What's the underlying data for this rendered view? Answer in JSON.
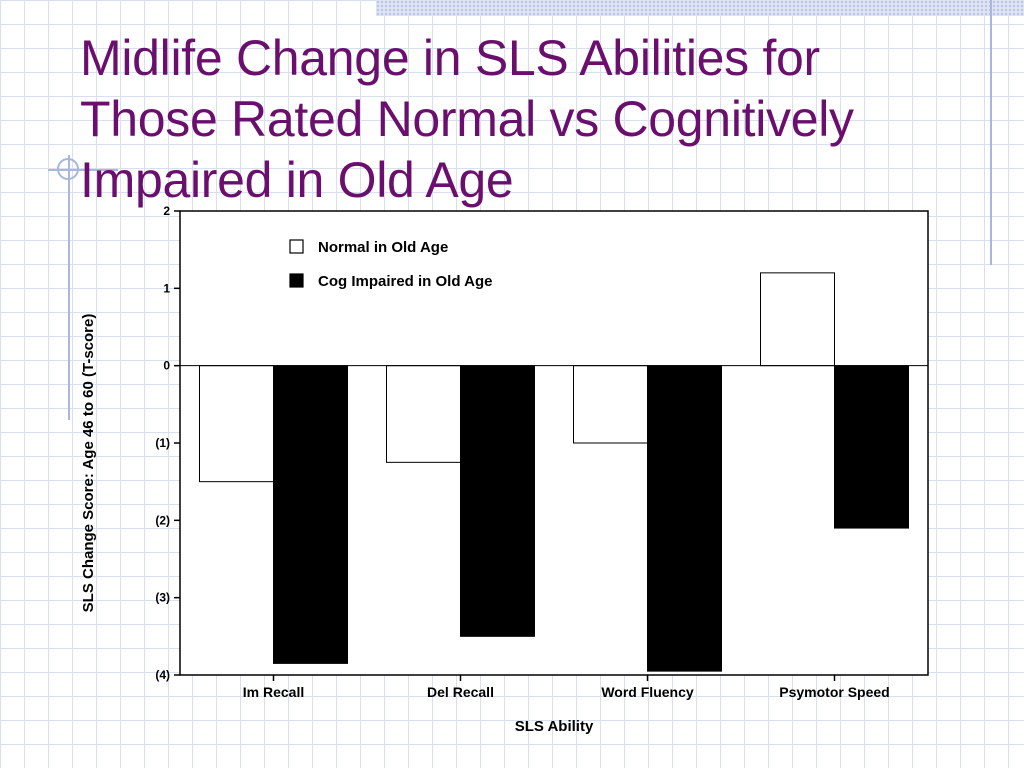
{
  "slide": {
    "title_lines": [
      "Midlife Change in SLS Abilities for",
      "Those Rated Normal vs Cognitively",
      "Impaired in Old Age"
    ],
    "colors": {
      "title": "#6b0f6e",
      "grid": "#d9dfec",
      "accent": "#a9b7dc"
    }
  },
  "chart_data": {
    "type": "bar",
    "xlabel": "SLS Ability",
    "ylabel": "SLS Change Score: Age 46 to 60 (T-score)",
    "categories": [
      "Im Recall",
      "Del Recall",
      "Word Fluency",
      "Psymotor Speed"
    ],
    "series": [
      {
        "name": "Normal in Old Age",
        "color": "#ffffff",
        "values": [
          -1.5,
          -1.25,
          -1.0,
          1.2
        ]
      },
      {
        "name": "Cog Impaired in Old Age",
        "color": "#000000",
        "values": [
          -3.85,
          -3.5,
          -3.95,
          -2.1
        ]
      }
    ],
    "ylim": [
      -4,
      2
    ],
    "yticks": [
      2,
      1,
      0,
      -1,
      -2,
      -3,
      -4
    ],
    "ytick_labels": [
      "2",
      "1",
      "0",
      "(1)",
      "(2)",
      "(3)",
      "(4)"
    ],
    "legend_position": "top-left",
    "grid": false
  }
}
